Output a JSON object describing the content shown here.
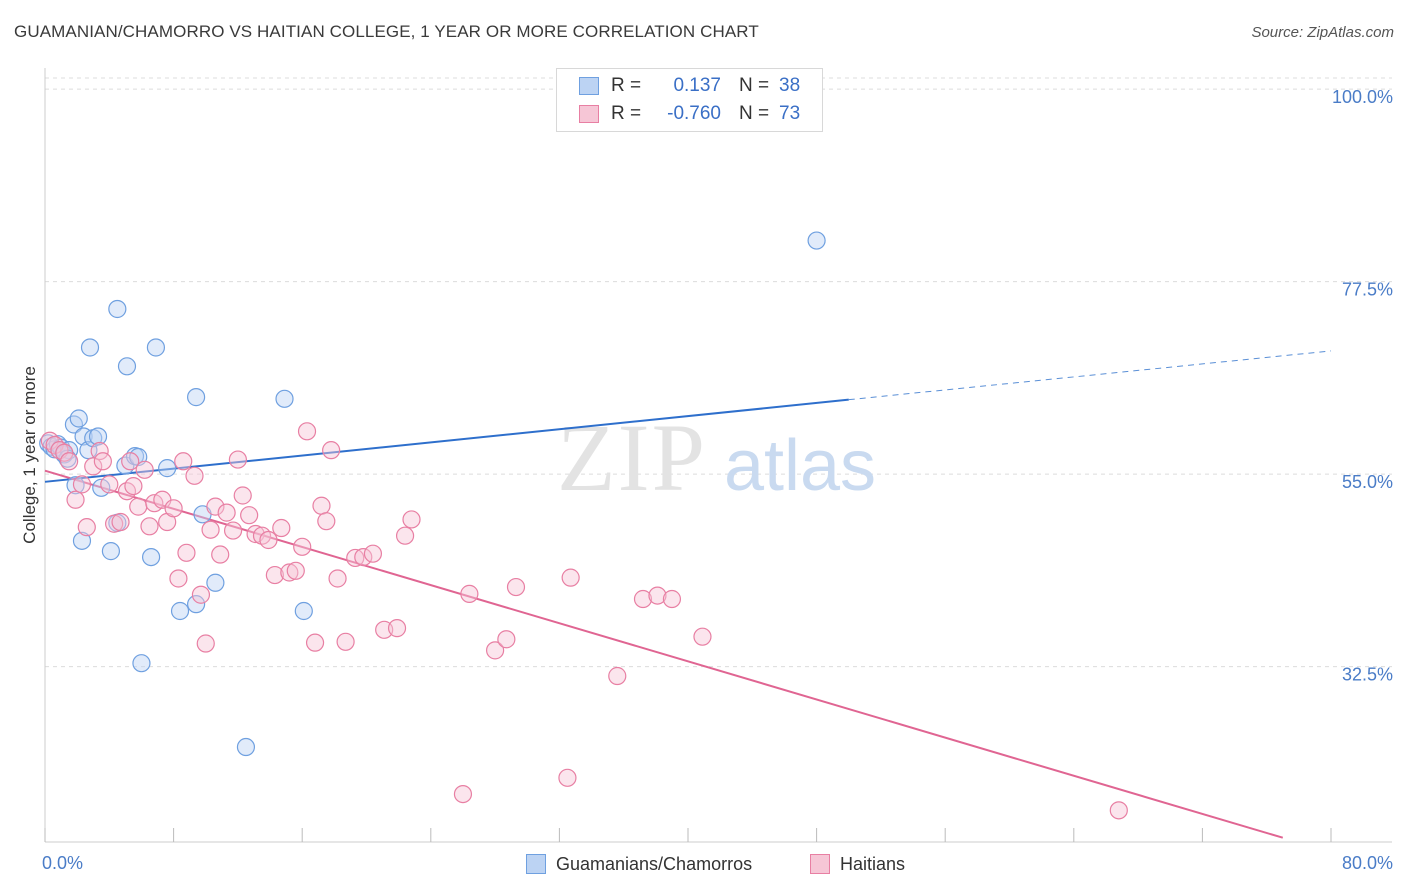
{
  "title": "GUAMANIAN/CHAMORRO VS HAITIAN COLLEGE, 1 YEAR OR MORE CORRELATION CHART",
  "source": "Source: ZipAtlas.com",
  "watermark": {
    "zip": "ZIP",
    "atlas": "atlas"
  },
  "legend": {
    "rows": [
      {
        "r_label": "R =",
        "r_value": "0.137",
        "n_label": "N =",
        "n_value": "38"
      },
      {
        "r_label": "R =",
        "r_value": "-0.760",
        "n_label": "N =",
        "n_value": "73"
      }
    ]
  },
  "bottom_legend": [
    "Guamanians/Chamorros",
    "Haitians"
  ],
  "chart_data": {
    "type": "scatter",
    "title": "GUAMANIAN/CHAMORRO VS HAITIAN COLLEGE, 1 YEAR OR MORE CORRELATION CHART",
    "xlabel": "",
    "ylabel": "College, 1 year or more",
    "xlim": [
      0,
      80
    ],
    "ylim": [
      12,
      102
    ],
    "x_tick_labels": [
      {
        "value": 0,
        "label": "0.0%"
      },
      {
        "value": 80,
        "label": "80.0%"
      }
    ],
    "y_ticks": [
      {
        "value": 100,
        "label": "100.0%"
      },
      {
        "value": 77.5,
        "label": "77.5%"
      },
      {
        "value": 55,
        "label": "55.0%"
      },
      {
        "value": 32.5,
        "label": "32.5%"
      }
    ],
    "x_minor_ticks": [
      0,
      8,
      16,
      24,
      32,
      40,
      48,
      56,
      64,
      72,
      80
    ],
    "series": [
      {
        "name": "Guamanians/Chamorros",
        "color": "#6fa0e0",
        "fill": "#bcd3f3",
        "R": 0.137,
        "N": 38,
        "trend": {
          "x0": 0,
          "y0": 54.1,
          "x1": 50,
          "y1": 63.7,
          "dash_x1": 80,
          "dash_y1": 69.4
        },
        "points": [
          [
            0.2,
            58.6
          ],
          [
            0.4,
            58.2
          ],
          [
            0.6,
            57.9
          ],
          [
            0.8,
            58.5
          ],
          [
            1.0,
            58.1
          ],
          [
            1.2,
            57.3
          ],
          [
            1.5,
            57.8
          ],
          [
            1.8,
            60.8
          ],
          [
            2.1,
            61.5
          ],
          [
            2.4,
            59.4
          ],
          [
            2.7,
            57.8
          ],
          [
            3.0,
            59.2
          ],
          [
            3.3,
            59.4
          ],
          [
            1.4,
            56.8
          ],
          [
            1.9,
            53.7
          ],
          [
            2.3,
            47.2
          ],
          [
            3.5,
            53.4
          ],
          [
            4.1,
            46.0
          ],
          [
            4.5,
            49.3
          ],
          [
            5.0,
            56.0
          ],
          [
            5.6,
            57.1
          ],
          [
            5.8,
            57.0
          ],
          [
            6.0,
            32.9
          ],
          [
            6.6,
            45.3
          ],
          [
            7.6,
            55.7
          ],
          [
            8.4,
            39.0
          ],
          [
            9.4,
            39.8
          ],
          [
            9.8,
            50.3
          ],
          [
            10.6,
            42.3
          ],
          [
            12.5,
            23.1
          ],
          [
            14.9,
            63.8
          ],
          [
            16.1,
            39.0
          ],
          [
            5.1,
            67.6
          ],
          [
            2.8,
            69.8
          ],
          [
            4.5,
            74.3
          ],
          [
            6.9,
            69.8
          ],
          [
            9.4,
            64.0
          ],
          [
            48.0,
            82.3
          ]
        ]
      },
      {
        "name": "Haitians",
        "color": "#e87fa3",
        "fill": "#f6c6d6",
        "R": -0.76,
        "N": 73,
        "trend": {
          "x0": 0,
          "y0": 55.4,
          "x1": 77,
          "y1": 12.5
        },
        "points": [
          [
            0.3,
            58.9
          ],
          [
            0.6,
            58.4
          ],
          [
            0.9,
            57.8
          ],
          [
            1.2,
            57.5
          ],
          [
            1.5,
            56.5
          ],
          [
            1.9,
            52.0
          ],
          [
            2.3,
            53.8
          ],
          [
            2.6,
            48.8
          ],
          [
            3.0,
            55.9
          ],
          [
            3.4,
            57.7
          ],
          [
            3.6,
            56.5
          ],
          [
            4.0,
            53.8
          ],
          [
            4.3,
            49.2
          ],
          [
            4.7,
            49.4
          ],
          [
            5.1,
            53.0
          ],
          [
            5.3,
            56.5
          ],
          [
            5.5,
            53.6
          ],
          [
            5.8,
            51.2
          ],
          [
            6.2,
            55.5
          ],
          [
            6.5,
            48.9
          ],
          [
            6.8,
            51.6
          ],
          [
            7.3,
            52.0
          ],
          [
            7.6,
            49.4
          ],
          [
            8.0,
            51.0
          ],
          [
            8.3,
            42.8
          ],
          [
            8.6,
            56.5
          ],
          [
            8.8,
            45.8
          ],
          [
            9.3,
            54.8
          ],
          [
            9.7,
            40.9
          ],
          [
            10.0,
            35.2
          ],
          [
            10.3,
            48.5
          ],
          [
            10.6,
            51.2
          ],
          [
            10.9,
            45.6
          ],
          [
            11.3,
            50.5
          ],
          [
            11.7,
            48.4
          ],
          [
            12.0,
            56.7
          ],
          [
            12.3,
            52.5
          ],
          [
            12.7,
            50.2
          ],
          [
            13.1,
            48.0
          ],
          [
            13.5,
            47.8
          ],
          [
            13.9,
            47.3
          ],
          [
            14.3,
            43.2
          ],
          [
            14.7,
            48.7
          ],
          [
            15.2,
            43.5
          ],
          [
            15.6,
            43.7
          ],
          [
            16.0,
            46.5
          ],
          [
            16.3,
            60.0
          ],
          [
            16.8,
            35.3
          ],
          [
            17.2,
            51.3
          ],
          [
            17.5,
            49.5
          ],
          [
            17.8,
            57.8
          ],
          [
            18.2,
            42.8
          ],
          [
            18.7,
            35.4
          ],
          [
            19.3,
            45.2
          ],
          [
            19.8,
            45.3
          ],
          [
            20.4,
            45.7
          ],
          [
            21.1,
            36.8
          ],
          [
            21.9,
            37.0
          ],
          [
            22.4,
            47.8
          ],
          [
            22.8,
            49.7
          ],
          [
            26.4,
            41.0
          ],
          [
            28.0,
            34.4
          ],
          [
            28.7,
            35.7
          ],
          [
            29.3,
            41.8
          ],
          [
            32.5,
            19.5
          ],
          [
            32.7,
            42.9
          ],
          [
            35.6,
            31.4
          ],
          [
            37.2,
            40.4
          ],
          [
            38.1,
            40.8
          ],
          [
            39.0,
            40.4
          ],
          [
            40.9,
            36.0
          ],
          [
            26.0,
            17.6
          ],
          [
            66.8,
            15.7
          ]
        ]
      }
    ]
  }
}
